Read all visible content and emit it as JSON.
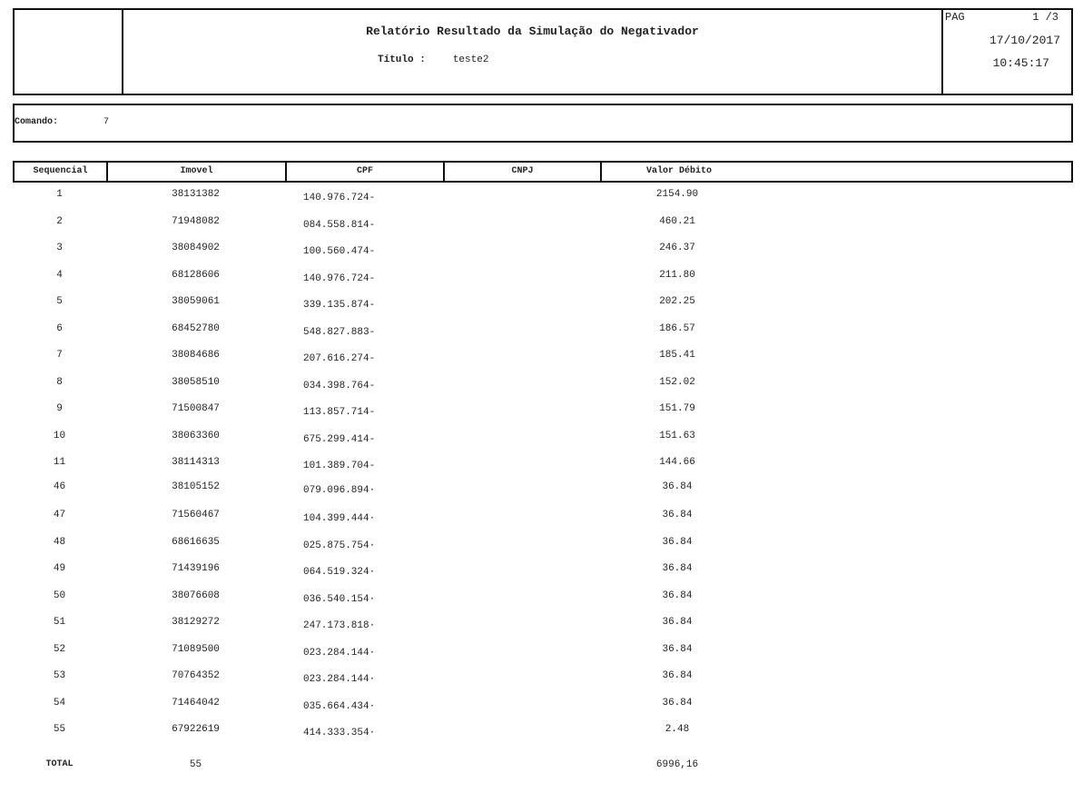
{
  "header": {
    "title": "Relatório Resultado da Simulação do Negativador",
    "titulo_label": "Título :",
    "titulo_value": "teste2",
    "pag_label": "PAG",
    "pag_value": "1 /3",
    "date": "17/10/2017",
    "time": "10:45:17"
  },
  "comando": {
    "label": "Comando:",
    "value": "7"
  },
  "table": {
    "columns": [
      "Sequencial",
      "Imovel",
      "CPF",
      "CNPJ",
      "Valor Débito"
    ],
    "rows": [
      [
        "1",
        "38131382",
        "140.976.724-",
        "",
        "2154.90"
      ],
      [
        "2",
        "71948082",
        "084.558.814-",
        "",
        "460.21"
      ],
      [
        "3",
        "38084902",
        "100.560.474-",
        "",
        "246.37"
      ],
      [
        "4",
        "68128606",
        "140.976.724-",
        "",
        "211.80"
      ],
      [
        "5",
        "38059061",
        "339.135.874-",
        "",
        "202.25"
      ],
      [
        "6",
        "68452780",
        "548.827.883-",
        "",
        "186.57"
      ],
      [
        "7",
        "38084686",
        "207.616.274-",
        "",
        "185.41"
      ],
      [
        "8",
        "38058510",
        "034.398.764-",
        "",
        "152.02"
      ],
      [
        "9",
        "71500847",
        "113.857.714-",
        "",
        "151.79"
      ],
      [
        "10",
        "38063360",
        "675.299.414-",
        "",
        "151.63"
      ],
      [
        "11",
        "38114313",
        "101.389.704-",
        "",
        "144.66"
      ],
      [
        "46",
        "38105152",
        "079.096.894·",
        "",
        "36.84"
      ],
      [
        "47",
        "71560467",
        "104.399.444·",
        "",
        "36.84"
      ],
      [
        "48",
        "68616635",
        "025.875.754·",
        "",
        "36.84"
      ],
      [
        "49",
        "71439196",
        "064.519.324·",
        "",
        "36.84"
      ],
      [
        "50",
        "38076608",
        "036.540.154·",
        "",
        "36.84"
      ],
      [
        "51",
        "38129272",
        "247.173.818·",
        "",
        "36.84"
      ],
      [
        "52",
        "71089500",
        "023.284.144·",
        "",
        "36.84"
      ],
      [
        "53",
        "70764352",
        "023.284.144·",
        "",
        "36.84"
      ],
      [
        "54",
        "71464042",
        "035.664.434·",
        "",
        "36.84"
      ],
      [
        "55",
        "67922619",
        "414.333.354·",
        "",
        "2.48"
      ]
    ],
    "total": {
      "label": "TOTAL",
      "count": "55",
      "value": "6996,16"
    }
  }
}
